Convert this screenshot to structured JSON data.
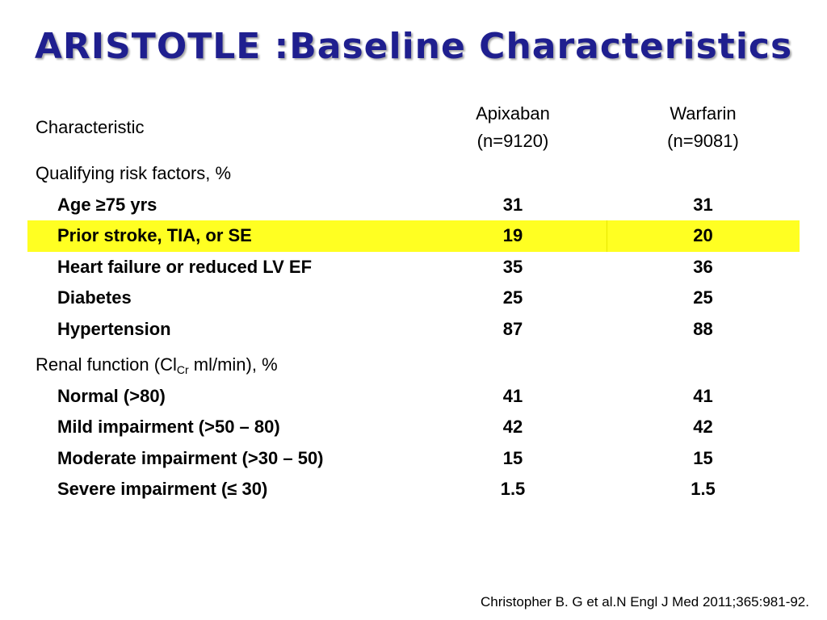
{
  "title": "ARISTOTLE :Baseline Characteristics",
  "colors": {
    "title": "#1f1f8f",
    "highlight": "#ffff22"
  },
  "table": {
    "header": {
      "characteristic": "Characteristic",
      "apixaban_name": "Apixaban",
      "apixaban_n": "(n=9120)",
      "warfarin_name": "Warfarin",
      "warfarin_n": "(n=9081)"
    },
    "section_risk": "Qualifying risk factors, %",
    "risk_rows": [
      {
        "label": "Age ≥75 yrs",
        "apixaban": "31",
        "warfarin": "31"
      },
      {
        "label": "Prior stroke, TIA, or SE",
        "apixaban": "19",
        "warfarin": "20"
      },
      {
        "label": "Heart failure or reduced LV EF",
        "apixaban": "35",
        "warfarin": "36"
      },
      {
        "label": "Diabetes",
        "apixaban": "25",
        "warfarin": "25"
      },
      {
        "label": "Hypertension",
        "apixaban": "87",
        "warfarin": "88"
      }
    ],
    "section_renal": {
      "prefix": "Renal function (Cl",
      "subscript": "Cr",
      "suffix": " ml/min), %"
    },
    "renal_rows": [
      {
        "label": "Normal (>80)",
        "apixaban": "41",
        "warfarin": "41"
      },
      {
        "label": "Mild impairment (>50 – 80)",
        "apixaban": "42",
        "warfarin": "42"
      },
      {
        "label": "Moderate impairment (>30 – 50)",
        "apixaban": "15",
        "warfarin": "15"
      },
      {
        "label": "Severe impairment (≤ 30)",
        "apixaban": "1.5",
        "warfarin": "1.5"
      }
    ]
  },
  "citation": "Christopher B. G et al.N Engl J Med 2011;365:981-92."
}
